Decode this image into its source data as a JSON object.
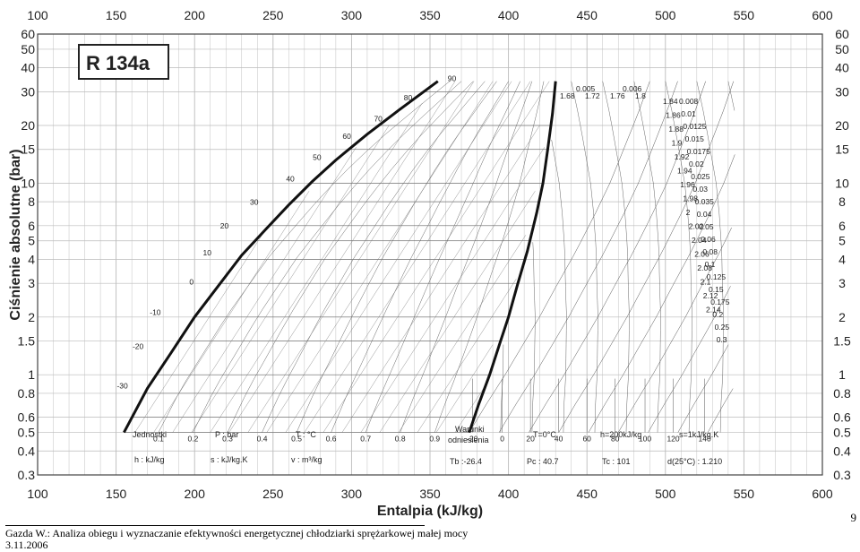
{
  "chart_data": {
    "type": "line",
    "title": "R 134a",
    "xlabel": "Entalpia (kJ/kg)",
    "ylabel": "Ciśnienie absolutne (bar)",
    "x_scale": "linear",
    "y_scale": "log",
    "xlim": [
      100,
      600
    ],
    "ylim": [
      0.3,
      60
    ],
    "x_ticks": [
      "100",
      "150",
      "200",
      "250",
      "300",
      "350",
      "400",
      "450",
      "500",
      "550",
      "600"
    ],
    "y_ticks_left": [
      "60",
      "50",
      "40",
      "30",
      "20",
      "15",
      "10",
      "8",
      "6",
      "5",
      "4",
      "3",
      "2",
      "1.5",
      "1",
      "0.8",
      "0.6",
      "0.5",
      "0.4",
      "0.3"
    ],
    "y_ticks_right": [
      "60",
      "50",
      "40",
      "30",
      "20",
      "15",
      "10",
      "8",
      "6",
      "5",
      "4",
      "3",
      "2",
      "1.5",
      "1",
      "0.8",
      "0.6",
      "0.5",
      "0.4",
      "0.3"
    ],
    "grid": true,
    "series": [
      {
        "name": "",
        "x": [
          155,
          170,
          185,
          200,
          215,
          230,
          245,
          260,
          275,
          290,
          310,
          330,
          355
        ],
        "y": [
          0.5,
          0.85,
          1.3,
          2.0,
          2.9,
          4.2,
          5.7,
          7.7,
          10.2,
          13.2,
          18.0,
          24.0,
          34.0
        ]
      },
      {
        "name": "",
        "x": [
          375,
          381,
          388,
          395,
          400,
          406,
          412,
          418,
          422,
          425,
          428,
          430
        ],
        "y": [
          0.5,
          0.7,
          1.0,
          1.5,
          2.0,
          3.0,
          4.4,
          7.0,
          10.0,
          15.0,
          23.0,
          34.0
        ]
      }
    ],
    "isotherm_labels": [
      {
        "text": "-30",
        "h": 154,
        "p": 0.85
      },
      {
        "text": "-20",
        "h": 164,
        "p": 1.36
      },
      {
        "text": "-10",
        "h": 175,
        "p": 2.05
      },
      {
        "text": "0",
        "h": 198,
        "p": 2.95
      },
      {
        "text": "10",
        "h": 208,
        "p": 4.2
      },
      {
        "text": "20",
        "h": 219,
        "p": 5.8
      },
      {
        "text": "30",
        "h": 238,
        "p": 7.7
      },
      {
        "text": "40",
        "h": 261,
        "p": 10.2
      },
      {
        "text": "50",
        "h": 278,
        "p": 13.2
      },
      {
        "text": "60",
        "h": 297,
        "p": 17.0
      },
      {
        "text": "70",
        "h": 317,
        "p": 21.0
      },
      {
        "text": "80",
        "h": 336,
        "p": 27.0
      },
      {
        "text": "90",
        "h": 364,
        "p": 34.0
      }
    ],
    "quality_labels": [
      "0.1",
      "0.2",
      "0.3",
      "0.4",
      "0.5",
      "0.6",
      "0.7",
      "0.8",
      "0.9"
    ],
    "quality_h": [
      169,
      192,
      214,
      236,
      258,
      281,
      303,
      325,
      348
    ],
    "bottom_temp_labels": [
      "-20",
      "0",
      "20",
      "40",
      "60",
      "80",
      "100",
      "120",
      "140"
    ],
    "bottom_temp_h": [
      377,
      396,
      414,
      432,
      450,
      468,
      487,
      505,
      525
    ],
    "entropy_labels": [
      "1.68",
      "1.72",
      "1.76",
      "1.8",
      "1.84",
      "1.86",
      "1.88",
      "1.9",
      "1.92",
      "1.94",
      "1.96",
      "1.98",
      "2",
      "2.02",
      "2.04",
      "2.06",
      "2.08",
      "2.1",
      "2.12",
      "2.14"
    ],
    "volume_labels": [
      "0.005",
      "0.006",
      "0.008",
      "0.01",
      "0.0125",
      "0.015",
      "0.0175",
      "0.02",
      "0.025",
      "0.03",
      "0.035",
      "0.04",
      "0.05",
      "0.06",
      "0.08",
      "0.1",
      "0.125",
      "0.15",
      "0.175",
      "0.2",
      "0.25",
      "0.3"
    ],
    "units_box": {
      "units_title": "Jednostki",
      "p_unit": "P : bar",
      "t_unit": "T : °C",
      "h_unit": "h : kJ/kg",
      "s_unit": "s : kJ/kg.K",
      "v_unit": "v : m³/kg",
      "ref_title_1": "Warunki",
      "ref_title_2": "odniesienia",
      "ref_t": "T=0°C",
      "ref_h": "h=200kJ/kg",
      "ref_s": "s=1kJ/kg.K",
      "tb": "Tb :-26.4",
      "pc": "Pc : 40.7",
      "tc": "Tc : 101",
      "d25": "d(25°C) : 1.210"
    }
  },
  "footer": {
    "line1": "Gazda W.: Analiza obiegu i wyznaczanie efektywności energetycznej chłodziarki sprężarkowej małej mocy",
    "line2": "3.11.2006",
    "page_number": "9"
  }
}
